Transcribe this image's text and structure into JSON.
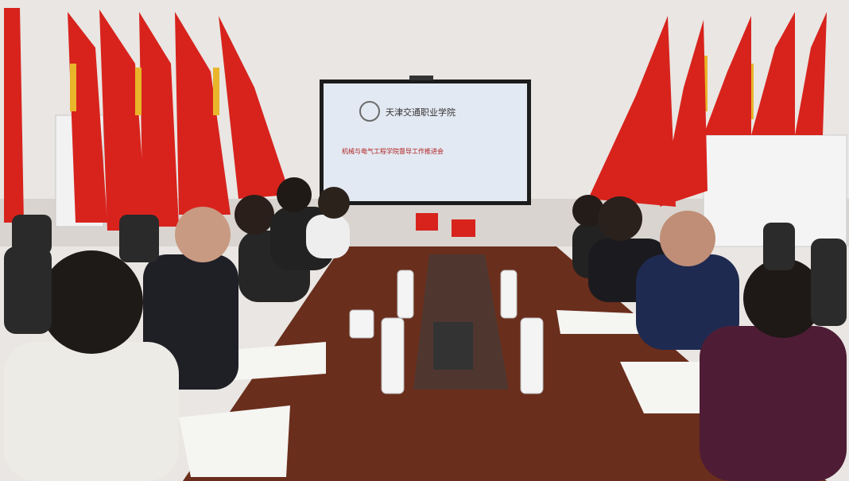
{
  "screen": {
    "header": "天津交通职业学院",
    "title": "机械与电气工程学院督导工作推进会"
  }
}
